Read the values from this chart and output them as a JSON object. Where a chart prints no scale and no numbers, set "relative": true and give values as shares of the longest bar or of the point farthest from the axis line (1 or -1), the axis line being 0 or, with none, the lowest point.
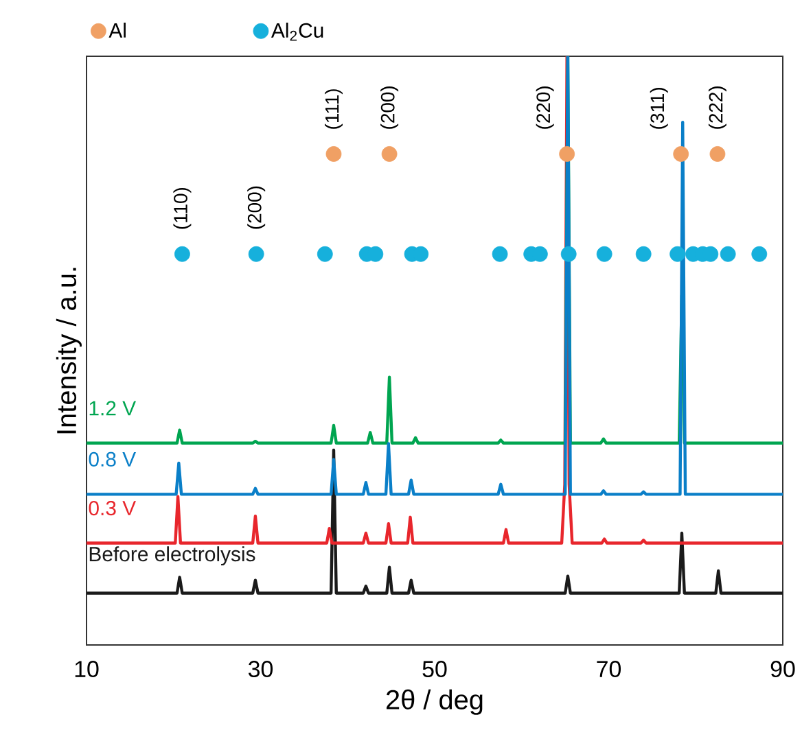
{
  "chart_data": {
    "type": "line",
    "relative": true,
    "xlabel": "2θ / deg",
    "ylabel": "Intensity / a.u.",
    "xlim": [
      10,
      90
    ],
    "xticks": [
      10,
      30,
      50,
      70,
      90
    ],
    "legend": "top",
    "grid": false,
    "series": [
      {
        "name": "Before electrolysis",
        "color": "#1a1a1a",
        "x": [
          10,
          20.4,
          20.7,
          21.0,
          29.1,
          29.4,
          29.7,
          38.1,
          38.4,
          38.7,
          41.8,
          42.1,
          42.4,
          44.5,
          44.8,
          45.1,
          47.0,
          47.3,
          47.6,
          65.0,
          65.3,
          65.6,
          78.1,
          78.4,
          78.7,
          82.3,
          82.6,
          82.9,
          90
        ],
        "values": [
          0.088,
          0.088,
          0.115,
          0.088,
          0.088,
          0.11,
          0.088,
          0.088,
          0.331,
          0.088,
          0.088,
          0.1,
          0.088,
          0.088,
          0.132,
          0.088,
          0.088,
          0.11,
          0.088,
          0.088,
          0.117,
          0.088,
          0.088,
          0.19,
          0.088,
          0.088,
          0.126,
          0.088,
          0.088
        ]
      },
      {
        "name": "0.3 V",
        "color": "#e8262c",
        "x": [
          10,
          20.2,
          20.5,
          20.8,
          29.1,
          29.4,
          29.7,
          37.6,
          37.9,
          38.2,
          41.8,
          42.1,
          42.4,
          44.4,
          44.7,
          45.0,
          46.9,
          47.2,
          47.5,
          57.9,
          58.2,
          58.5,
          64.6,
          64.95,
          65.2,
          65.45,
          65.8,
          69.2,
          69.5,
          69.8,
          73.7,
          74.0,
          74.3,
          90
        ],
        "values": [
          0.173,
          0.173,
          0.252,
          0.173,
          0.173,
          0.219,
          0.173,
          0.173,
          0.198,
          0.173,
          0.173,
          0.19,
          0.173,
          0.173,
          0.206,
          0.173,
          0.173,
          0.217,
          0.173,
          0.173,
          0.196,
          0.173,
          0.173,
          0.273,
          1,
          0.273,
          0.173,
          0.173,
          0.18,
          0.173,
          0.173,
          0.178,
          0.173,
          0.173
        ]
      },
      {
        "name": "1.2 V",
        "color": "#00a550",
        "x": [
          10,
          20.4,
          20.7,
          21.0,
          29.1,
          29.4,
          29.7,
          38.1,
          38.4,
          38.7,
          42.3,
          42.6,
          42.9,
          44.5,
          44.8,
          45.1,
          47.5,
          47.8,
          48.1,
          57.3,
          57.6,
          57.9,
          65.0,
          65.3,
          65.6,
          69.1,
          69.4,
          69.7,
          78.1,
          78.4,
          78.7,
          90
        ],
        "values": [
          0.343,
          0.343,
          0.365,
          0.343,
          0.343,
          0.346,
          0.343,
          0.343,
          0.373,
          0.343,
          0.343,
          0.361,
          0.343,
          0.343,
          0.455,
          0.343,
          0.343,
          0.352,
          0.343,
          0.343,
          0.348,
          0.343,
          0.343,
          1,
          0.343,
          0.343,
          0.35,
          0.343,
          0.343,
          0.594,
          0.343,
          0.343
        ]
      },
      {
        "name": "0.8 V",
        "color": "#0a7fc8",
        "x": [
          10,
          20.3,
          20.6,
          20.9,
          29.1,
          29.4,
          29.7,
          38.1,
          38.4,
          38.7,
          41.8,
          42.1,
          42.4,
          44.4,
          44.7,
          45.0,
          47.0,
          47.3,
          47.6,
          57.3,
          57.6,
          57.9,
          65.0,
          65.3,
          65.6,
          69.1,
          69.4,
          69.7,
          73.7,
          74.0,
          74.3,
          78.2,
          78.5,
          78.8,
          90
        ],
        "values": [
          0.256,
          0.256,
          0.309,
          0.256,
          0.256,
          0.266,
          0.256,
          0.256,
          0.315,
          0.256,
          0.256,
          0.276,
          0.256,
          0.256,
          0.342,
          0.256,
          0.256,
          0.28,
          0.256,
          0.256,
          0.273,
          0.256,
          0.256,
          1,
          0.256,
          0.256,
          0.262,
          0.256,
          0.256,
          0.26,
          0.256,
          0.256,
          0.888,
          0.256,
          0.256
        ]
      },
      {
        "name": "Al",
        "type": "scatter",
        "marker": "circle",
        "color": "#f0a064",
        "x": [
          38.4,
          44.8,
          65.2,
          78.3,
          82.5
        ],
        "values": [
          0.834,
          0.834,
          0.834,
          0.834,
          0.834
        ]
      },
      {
        "name": "Al$_{2}$Cu",
        "type": "scatter",
        "marker": "circle",
        "color": "#16b0dc",
        "x": [
          21.0,
          29.5,
          37.4,
          42.2,
          43.2,
          47.4,
          48.4,
          57.5,
          61.1,
          62.1,
          65.4,
          69.5,
          74.0,
          77.9,
          79.7,
          80.8,
          81.7,
          83.7,
          87.3
        ],
        "values": [
          0.664,
          0.664,
          0.664,
          0.664,
          0.664,
          0.664,
          0.664,
          0.664,
          0.664,
          0.664,
          0.664,
          0.664,
          0.664,
          0.664,
          0.664,
          0.664,
          0.664,
          0.664,
          0.664
        ]
      }
    ],
    "annotations": [
      "(110)",
      "(200)",
      "(111)",
      "(200)",
      "(220)",
      "(311)",
      "(222)"
    ]
  }
}
